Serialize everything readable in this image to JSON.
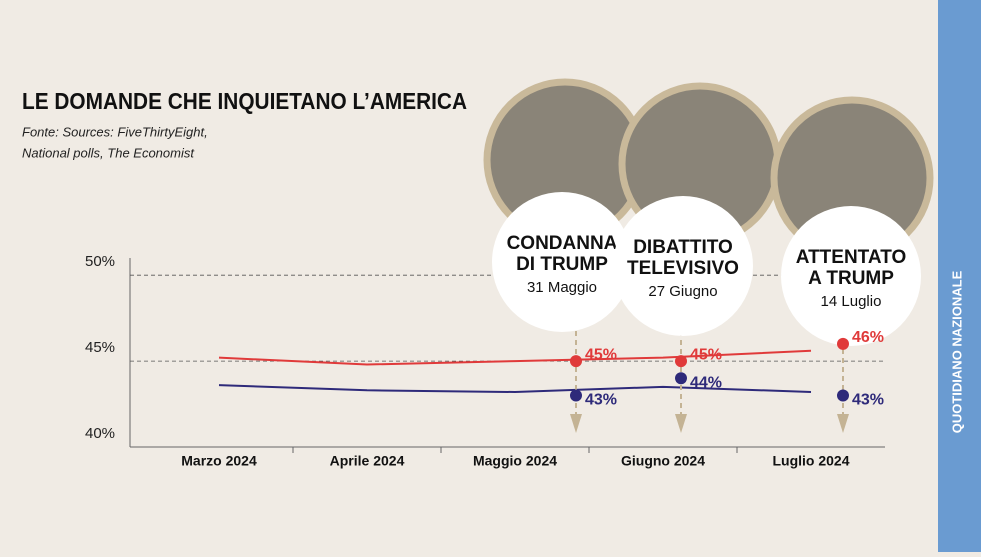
{
  "brand": "QUOTIDIANO NAZIONALE",
  "chart_data": {
    "type": "line",
    "title": "LE DOMANDE CHE INQUIETANO L’AMERICA",
    "source": [
      "Fonte: Sources: FiveThirtyEight,",
      "National polls, The Economist"
    ],
    "categories": [
      "Marzo 2024",
      "Aprile 2024",
      "Maggio 2024",
      "Giugno 2024",
      "Luglio 2024"
    ],
    "series": [
      {
        "color": "#e03a3a",
        "values": [
          45.2,
          44.8,
          45.0,
          45.2,
          45.6
        ]
      },
      {
        "color": "#2e2a7a",
        "values": [
          43.6,
          43.3,
          43.2,
          43.5,
          43.2
        ]
      }
    ],
    "ylim": [
      40,
      51
    ],
    "yticks": [
      {
        "value": 40,
        "label": "40%"
      },
      {
        "value": 45,
        "label": "45%"
      },
      {
        "value": 50,
        "label": "50%"
      }
    ],
    "grid": true,
    "events": [
      {
        "title": [
          "CONDANNA",
          "DI TRUMP"
        ],
        "date": "31 Maggio",
        "values": [
          45,
          43
        ],
        "value_labels": [
          "45%",
          "43%"
        ]
      },
      {
        "title": [
          "DIBATTITO",
          "TELEVISIVO"
        ],
        "date": "27 Giugno",
        "values": [
          45,
          44
        ],
        "value_labels": [
          "45%",
          "44%"
        ]
      },
      {
        "title": [
          "ATTENTATO",
          "A TRUMP"
        ],
        "date": "14 Luglio",
        "values": [
          46,
          43
        ],
        "value_labels": [
          "46%",
          "43%"
        ]
      }
    ]
  }
}
